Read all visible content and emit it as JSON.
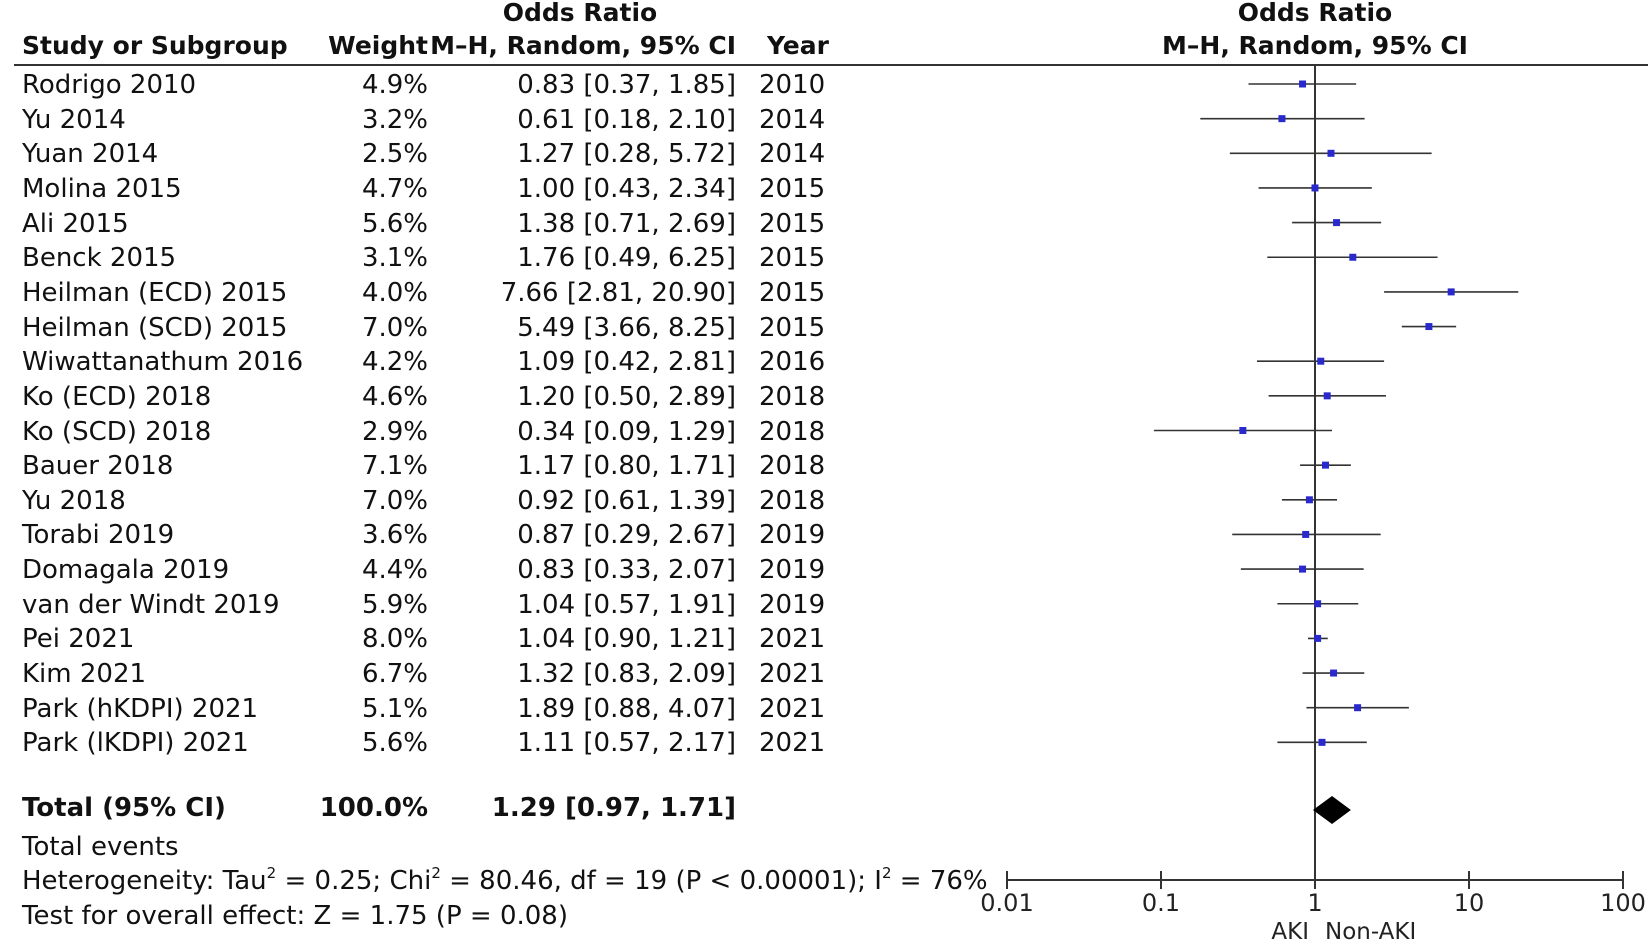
{
  "headers": {
    "or_left_top": "Odds Ratio",
    "or_left_sub": "M–H, Random, 95% CI",
    "study": "Study or Subgroup",
    "weight": "Weight",
    "year": "Year",
    "or_right_top": "Odds Ratio",
    "or_right_sub": "M–H, Random, 95% CI"
  },
  "studies": [
    {
      "name": "Rodrigo 2010",
      "weight": "4.9%",
      "ci_text": "0.83 [0.37, 1.85]",
      "year": "2010"
    },
    {
      "name": "Yu 2014",
      "weight": "3.2%",
      "ci_text": "0.61 [0.18, 2.10]",
      "year": "2014"
    },
    {
      "name": "Yuan 2014",
      "weight": "2.5%",
      "ci_text": "1.27 [0.28, 5.72]",
      "year": "2014"
    },
    {
      "name": "Molina 2015",
      "weight": "4.7%",
      "ci_text": "1.00 [0.43, 2.34]",
      "year": "2015"
    },
    {
      "name": "Ali 2015",
      "weight": "5.6%",
      "ci_text": "1.38 [0.71, 2.69]",
      "year": "2015"
    },
    {
      "name": "Benck 2015",
      "weight": "3.1%",
      "ci_text": "1.76 [0.49, 6.25]",
      "year": "2015"
    },
    {
      "name": "Heilman (ECD) 2015",
      "weight": "4.0%",
      "ci_text": "7.66 [2.81, 20.90]",
      "year": "2015"
    },
    {
      "name": "Heilman (SCD) 2015",
      "weight": "7.0%",
      "ci_text": "5.49 [3.66, 8.25]",
      "year": "2015"
    },
    {
      "name": "Wiwattanathum 2016",
      "weight": "4.2%",
      "ci_text": "1.09 [0.42, 2.81]",
      "year": "2016"
    },
    {
      "name": "Ko (ECD) 2018",
      "weight": "4.6%",
      "ci_text": "1.20 [0.50, 2.89]",
      "year": "2018"
    },
    {
      "name": "Ko (SCD) 2018",
      "weight": "2.9%",
      "ci_text": "0.34 [0.09, 1.29]",
      "year": "2018"
    },
    {
      "name": "Bauer 2018",
      "weight": "7.1%",
      "ci_text": "1.17 [0.80, 1.71]",
      "year": "2018"
    },
    {
      "name": "Yu 2018",
      "weight": "7.0%",
      "ci_text": "0.92 [0.61, 1.39]",
      "year": "2018"
    },
    {
      "name": "Torabi 2019",
      "weight": "3.6%",
      "ci_text": "0.87 [0.29, 2.67]",
      "year": "2019"
    },
    {
      "name": "Domagala 2019",
      "weight": "4.4%",
      "ci_text": "0.83 [0.33, 2.07]",
      "year": "2019"
    },
    {
      "name": "van der Windt 2019",
      "weight": "5.9%",
      "ci_text": "1.04 [0.57, 1.91]",
      "year": "2019"
    },
    {
      "name": "Pei 2021",
      "weight": "8.0%",
      "ci_text": "1.04 [0.90, 1.21]",
      "year": "2021"
    },
    {
      "name": "Kim 2021",
      "weight": "6.7%",
      "ci_text": "1.32 [0.83, 2.09]",
      "year": "2021"
    },
    {
      "name": "Park (hKDPI) 2021",
      "weight": "5.1%",
      "ci_text": "1.89 [0.88, 4.07]",
      "year": "2021"
    },
    {
      "name": "Park (lKDPI) 2021",
      "weight": "5.6%",
      "ci_text": "1.11 [0.57, 2.17]",
      "year": "2021"
    }
  ],
  "total": {
    "label": "Total (95% CI)",
    "weight": "100.0%",
    "ci_text": "1.29 [0.97, 1.71]"
  },
  "footer": {
    "total_events": "Total events",
    "heterogeneity_pre": "Heterogeneity: Tau",
    "heterogeneity_sup1": "2",
    "heterogeneity_mid": " = 0.25; Chi",
    "heterogeneity_sup2": "2",
    "heterogeneity_mid2": " = 80.46, df = 19 (P < 0.00001); I",
    "heterogeneity_sup3": "2",
    "heterogeneity_post": " = 76%",
    "overall_effect": "Test for overall effect: Z = 1.75 (P = 0.08)"
  },
  "colors": {
    "marker": "#2a2acc",
    "line": "#333333",
    "diamond": "#000000"
  },
  "chart_data": {
    "type": "forest",
    "x_scale": "log",
    "xlim": [
      0.01,
      100
    ],
    "ticks": [
      {
        "value": 0.01,
        "label": "0.01"
      },
      {
        "value": 0.1,
        "label": "0.1"
      },
      {
        "value": 1,
        "label": "1"
      },
      {
        "value": 10,
        "label": "10"
      },
      {
        "value": 100,
        "label": "100"
      }
    ],
    "null_line": 1,
    "left_label": "AKI",
    "right_label": "Non-AKI",
    "points": [
      {
        "or": 0.83,
        "lo": 0.37,
        "hi": 1.85
      },
      {
        "or": 0.61,
        "lo": 0.18,
        "hi": 2.1
      },
      {
        "or": 1.27,
        "lo": 0.28,
        "hi": 5.72
      },
      {
        "or": 1.0,
        "lo": 0.43,
        "hi": 2.34
      },
      {
        "or": 1.38,
        "lo": 0.71,
        "hi": 2.69
      },
      {
        "or": 1.76,
        "lo": 0.49,
        "hi": 6.25
      },
      {
        "or": 7.66,
        "lo": 2.81,
        "hi": 20.9
      },
      {
        "or": 5.49,
        "lo": 3.66,
        "hi": 8.25
      },
      {
        "or": 1.09,
        "lo": 0.42,
        "hi": 2.81
      },
      {
        "or": 1.2,
        "lo": 0.5,
        "hi": 2.89
      },
      {
        "or": 0.34,
        "lo": 0.09,
        "hi": 1.29
      },
      {
        "or": 1.17,
        "lo": 0.8,
        "hi": 1.71
      },
      {
        "or": 0.92,
        "lo": 0.61,
        "hi": 1.39
      },
      {
        "or": 0.87,
        "lo": 0.29,
        "hi": 2.67
      },
      {
        "or": 0.83,
        "lo": 0.33,
        "hi": 2.07
      },
      {
        "or": 1.04,
        "lo": 0.57,
        "hi": 1.91
      },
      {
        "or": 1.04,
        "lo": 0.9,
        "hi": 1.21
      },
      {
        "or": 1.32,
        "lo": 0.83,
        "hi": 2.09
      },
      {
        "or": 1.89,
        "lo": 0.88,
        "hi": 4.07
      },
      {
        "or": 1.11,
        "lo": 0.57,
        "hi": 2.17
      }
    ],
    "total": {
      "or": 1.29,
      "lo": 0.97,
      "hi": 1.71
    }
  }
}
